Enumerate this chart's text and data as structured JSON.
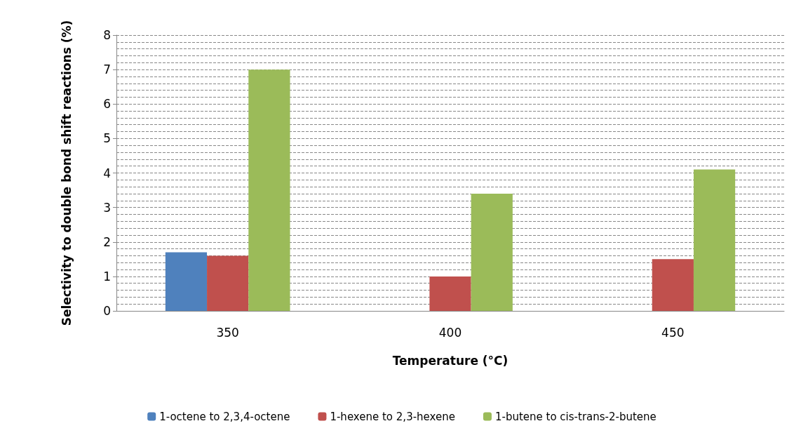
{
  "chart_data": {
    "type": "bar",
    "xlabel": "Temperature (°C)",
    "ylabel": "Selectivity to double bond shift reactions (%)",
    "categories": [
      "350",
      "400",
      "450"
    ],
    "series": [
      {
        "name": "1-octene to 2,3,4-octene",
        "color": "#4f81bd",
        "values": [
          1.7,
          null,
          null
        ]
      },
      {
        "name": "1-hexene to 2,3-hexene",
        "color": "#c0504d",
        "values": [
          1.6,
          1.0,
          1.5
        ]
      },
      {
        "name": "1-butene to cis-trans-2-butene",
        "color": "#9bbb59",
        "values": [
          7.0,
          3.4,
          4.1
        ]
      }
    ],
    "ylim": [
      0,
      8
    ],
    "yticks": [
      0,
      1,
      2,
      3,
      4,
      5,
      6,
      7,
      8
    ],
    "grid": "y",
    "legend": "bottom"
  }
}
